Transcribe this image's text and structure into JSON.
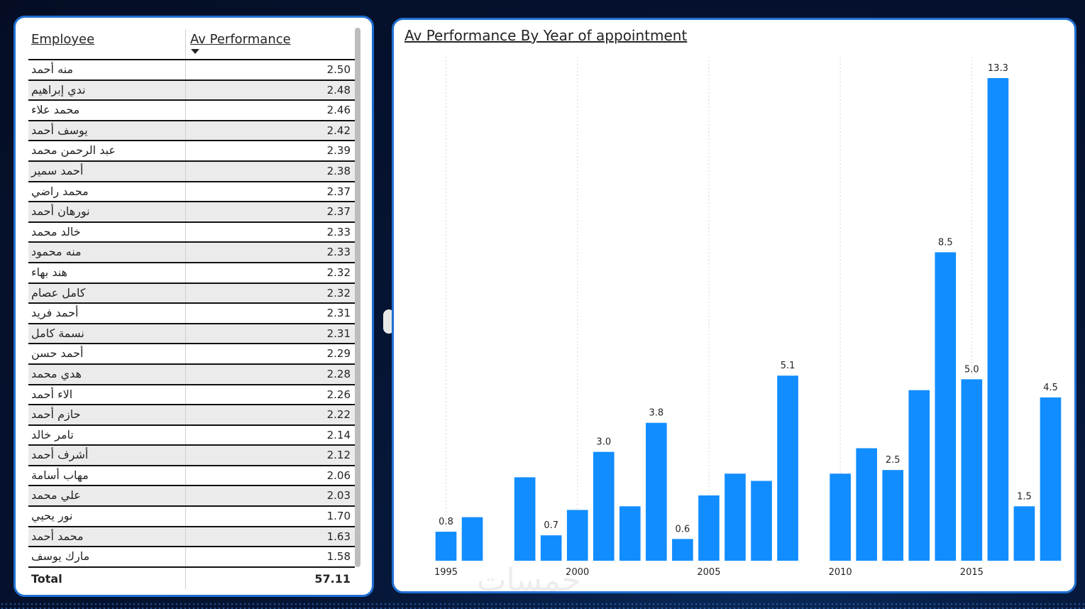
{
  "table": {
    "header_employee": "Employee",
    "header_perf": "Av Performance",
    "rows": [
      {
        "name": "منه أحمد",
        "value": "2.50"
      },
      {
        "name": "ندي إبراهيم",
        "value": "2.48"
      },
      {
        "name": "محمد علاء",
        "value": "2.46"
      },
      {
        "name": "يوسف أحمد",
        "value": "2.42"
      },
      {
        "name": "عبد الرحمن محمد",
        "value": "2.39"
      },
      {
        "name": "أحمد سمير",
        "value": "2.38"
      },
      {
        "name": "محمد راضي",
        "value": "2.37"
      },
      {
        "name": "نورهان أحمد",
        "value": "2.37"
      },
      {
        "name": "خالد محمد",
        "value": "2.33"
      },
      {
        "name": "منه محمود",
        "value": "2.33"
      },
      {
        "name": "هند بهاء",
        "value": "2.32"
      },
      {
        "name": "كامل عصام",
        "value": "2.32"
      },
      {
        "name": "أحمد فريد",
        "value": "2.31"
      },
      {
        "name": "نسمة كامل",
        "value": "2.31"
      },
      {
        "name": "أحمد حسن",
        "value": "2.29"
      },
      {
        "name": "هدي محمد",
        "value": "2.28"
      },
      {
        "name": "الاء أحمد",
        "value": "2.26"
      },
      {
        "name": "حازم أحمد",
        "value": "2.22"
      },
      {
        "name": "تامر خالد",
        "value": "2.14"
      },
      {
        "name": "أشرف أحمد",
        "value": "2.12"
      },
      {
        "name": "مهاب أسامة",
        "value": "2.06"
      },
      {
        "name": "علي محمد",
        "value": "2.03"
      },
      {
        "name": "نور يحيي",
        "value": "1.70"
      },
      {
        "name": "محمد أحمد",
        "value": "1.63"
      },
      {
        "name": "مارك يوسف",
        "value": "1.58"
      }
    ],
    "total_label": "Total",
    "total_value": "57.11"
  },
  "chart_data": {
    "type": "bar",
    "title": "Av Performance By Year of appointment",
    "x": [
      1995,
      1996,
      1998,
      1999,
      2000,
      2001,
      2002,
      2003,
      2004,
      2005,
      2006,
      2007,
      2008,
      2010,
      2011,
      2012,
      2013,
      2014,
      2015,
      2016,
      2017,
      2018
    ],
    "values": [
      0.8,
      1.2,
      2.3,
      0.7,
      1.4,
      3.0,
      1.5,
      3.8,
      0.6,
      1.8,
      2.4,
      2.2,
      5.1,
      2.4,
      3.1,
      2.5,
      4.7,
      8.5,
      5.0,
      13.3,
      1.5,
      4.5
    ],
    "data_labels": [
      "0.8",
      "",
      "",
      "0.7",
      "",
      "3.0",
      "",
      "3.8",
      "0.6",
      "",
      "",
      "",
      "5.1",
      "",
      "",
      "2.5",
      "",
      "8.5",
      "5.0",
      "13.3",
      "1.5",
      "4.5"
    ],
    "x_ticks": [
      "1995",
      "2000",
      "2005",
      "2010",
      "2015"
    ],
    "x_range": [
      1995,
      2018
    ],
    "y_range": [
      0,
      13.3
    ],
    "bar_color": "#118DFF",
    "grid": "vertical dotted"
  },
  "watermark": "خمسات"
}
